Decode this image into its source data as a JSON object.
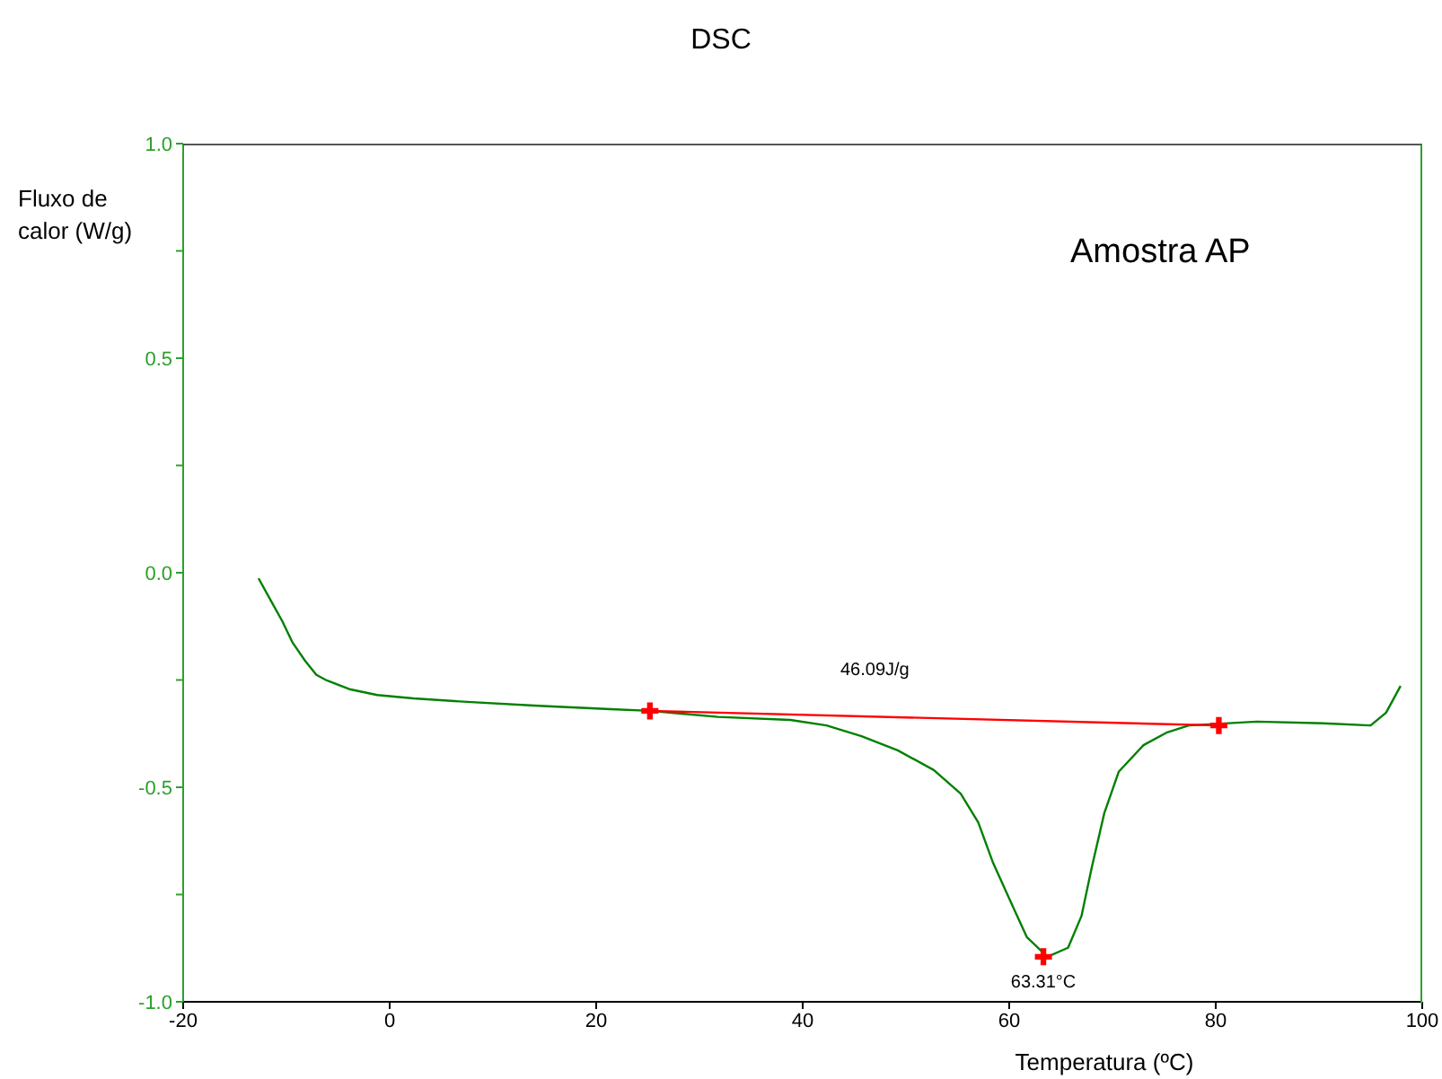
{
  "chart_data": {
    "type": "line",
    "title": "DSC",
    "xlabel": "Temperatura (ºC)",
    "ylabel": "Fluxo de calor (W/g)",
    "xlim": [
      -20,
      100
    ],
    "xticks": [
      -20,
      0,
      20,
      40,
      60,
      80,
      100
    ],
    "ylim": [
      -1.0,
      1.0
    ],
    "yticks": [
      {
        "value": -1,
        "label": "-1.0"
      },
      {
        "value": -0.75,
        "label": null
      },
      {
        "value": -0.5,
        "label": "-0.5"
      },
      {
        "value": -0.25,
        "label": null
      },
      {
        "value": 0,
        "label": "0.0"
      },
      {
        "value": 0.25,
        "label": null
      },
      {
        "value": 0.5,
        "label": "0.5"
      },
      {
        "value": 0.75,
        "label": null
      },
      {
        "value": 1,
        "label": "1.0"
      }
    ],
    "grid": false,
    "series": [
      {
        "color": "#008000",
        "marker": "none",
        "x": [
          -12.7,
          -11.65,
          -10.4,
          -9.4,
          -8.2,
          -7.1,
          -6.1,
          -3.8,
          -1.2,
          2.3,
          7.5,
          14.4,
          21.4,
          25.2,
          31.8,
          38.8,
          42.3,
          45.7,
          49.2,
          52.7,
          55.3,
          57.0,
          58.4,
          60.2,
          61.7,
          63.7,
          65.7,
          67.0,
          68.0,
          69.2,
          70.6,
          73.0,
          75.3,
          77.4,
          84.0,
          90.4,
          95.0,
          96.5,
          97.9
        ],
        "values": [
          -0.013,
          -0.059,
          -0.113,
          -0.163,
          -0.205,
          -0.238,
          -0.251,
          -0.272,
          -0.285,
          -0.293,
          -0.301,
          -0.31,
          -0.318,
          -0.322,
          -0.336,
          -0.343,
          -0.356,
          -0.381,
          -0.414,
          -0.46,
          -0.515,
          -0.582,
          -0.674,
          -0.77,
          -0.849,
          -0.895,
          -0.874,
          -0.8,
          -0.686,
          -0.561,
          -0.464,
          -0.402,
          -0.372,
          -0.356,
          -0.347,
          -0.351,
          -0.356,
          -0.326,
          -0.264
        ]
      },
      {
        "color": "#ff0000",
        "marker": "cross",
        "x": [
          25.2,
          80.3
        ],
        "values": [
          -0.322,
          -0.356
        ]
      },
      {
        "type": "scatter",
        "color": "#ff0000",
        "marker": "cross",
        "x": [
          63.31
        ],
        "values": [
          -0.895
        ]
      }
    ],
    "annotations": [
      "Amostra AP",
      "46.09J/g",
      {
        "text": "63.31°C",
        "x": 63.31,
        "y": -0.895
      }
    ]
  }
}
